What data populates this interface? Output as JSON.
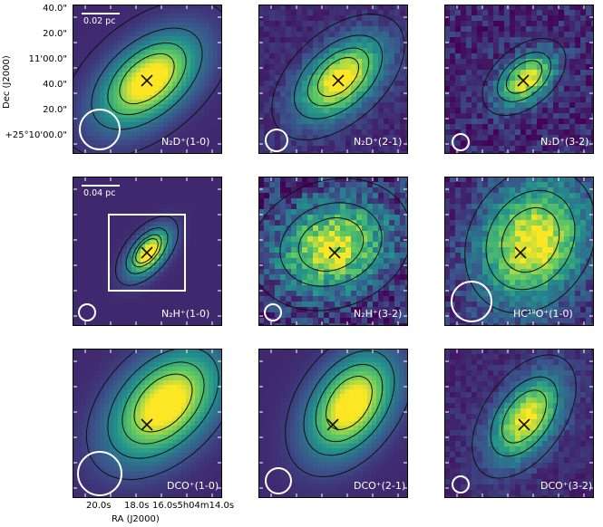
{
  "axes": {
    "ylabel": "Dec (J2000)",
    "xlabel": "RA (J2000)",
    "yticks": [
      "40.0\"",
      "20.0\"",
      "11'00.0\"",
      "40.0\"",
      "20.0\"",
      "+25°10'00.0\""
    ],
    "xticks": [
      "20.0s",
      "18.0s",
      "16.0s5h04m14.0s"
    ]
  },
  "scalebars": {
    "top": "0.02 pc",
    "middle": "0.04 pc"
  },
  "panels": [
    {
      "label": "N₂D⁺(1-0)"
    },
    {
      "label": "N₂D⁺(2-1)"
    },
    {
      "label": "N₂D⁺(3-2)"
    },
    {
      "label": "N₂H⁺(1-0)"
    },
    {
      "label": "N₂H⁺(3-2)"
    },
    {
      "label": "HC¹⁸O⁺(1-0)"
    },
    {
      "label": "DCO⁺(1-0)"
    },
    {
      "label": "DCO⁺(2-1)"
    },
    {
      "label": "DCO⁺(3-2)"
    }
  ],
  "colors": {
    "low": "#440154",
    "mid": "#21918c",
    "high": "#fde725",
    "marker": "#111111",
    "beam": "#ffffff"
  }
}
